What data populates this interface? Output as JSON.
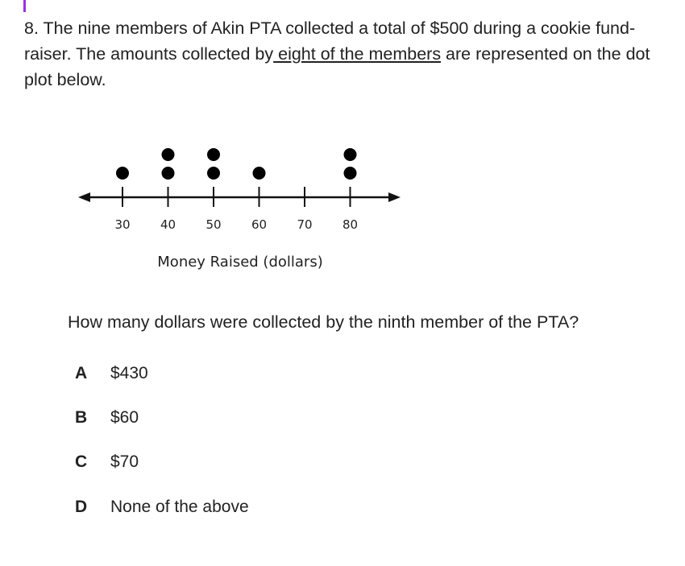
{
  "question": {
    "text_before": "8.  The nine members of Akin PTA collected a total of $500 during a cookie fund-raiser. The amounts collected by",
    "underlined": " eight of the members",
    "text_after": " are represented on the dot plot below."
  },
  "chart_data": {
    "type": "scatter",
    "subtype": "dot plot",
    "xlabel": "Money Raised (dollars)",
    "ticks": [
      30,
      40,
      50,
      60,
      70,
      80
    ],
    "tick_labels": [
      "30",
      "40",
      "50",
      "60",
      "70",
      "80"
    ],
    "values": [
      30,
      40,
      40,
      50,
      50,
      60,
      80,
      80
    ],
    "counts": {
      "30": 1,
      "40": 2,
      "50": 2,
      "60": 1,
      "70": 0,
      "80": 2
    }
  },
  "prompt": "How many dollars were collected by the ninth member of the PTA?",
  "choices": [
    {
      "letter": "A",
      "text": "$430"
    },
    {
      "letter": "B",
      "text": "$60"
    },
    {
      "letter": "C",
      "text": "$70"
    },
    {
      "letter": "D",
      "text": "None of the above"
    }
  ],
  "colors": {
    "cursor": "#9b30e0",
    "text": "#222222"
  }
}
